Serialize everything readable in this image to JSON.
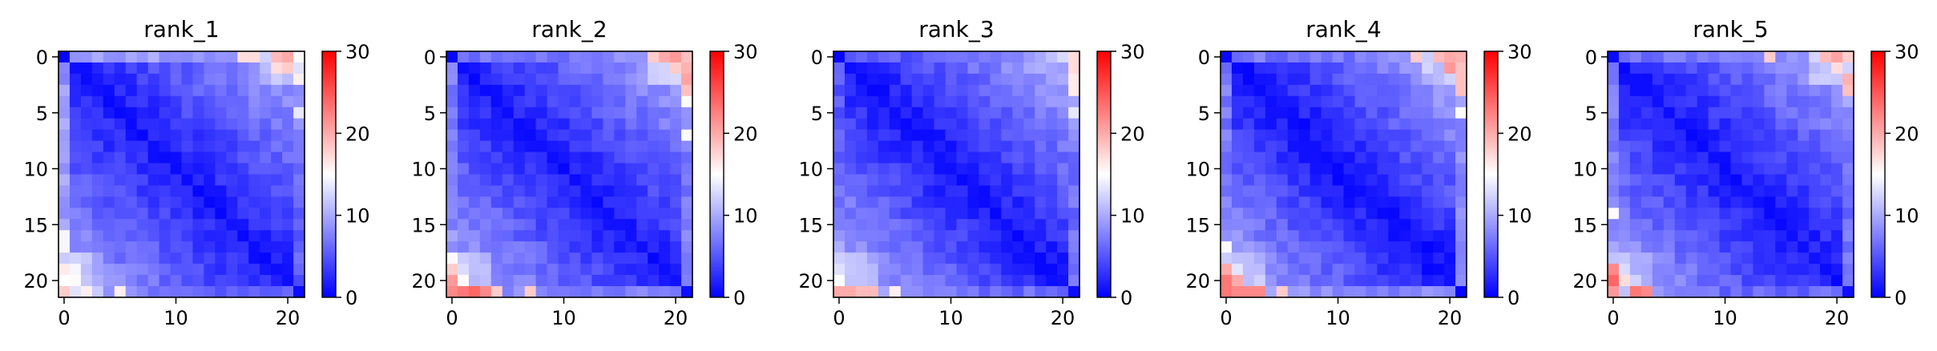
{
  "figure": {
    "colormap": "bwr",
    "colors": {
      "low": "#0000ff",
      "mid": "#ffffff",
      "high": "#ff0000",
      "axis": "#000000"
    }
  },
  "chart_data": [
    {
      "type": "heatmap",
      "title": "rank_1",
      "n": 22,
      "xticks": [
        0,
        10,
        20
      ],
      "yticks": [
        0,
        5,
        10,
        15,
        20
      ],
      "colorbar": {
        "min": 0,
        "max": 30,
        "ticks": [
          0,
          10,
          20,
          30
        ]
      },
      "profile": {
        "diag": 1.5,
        "slope": 0.42,
        "edge_top": 9,
        "edge_bottom": 7,
        "bl_hot": 1,
        "tr_hot": 1
      },
      "hotspots": [
        {
          "row": 0,
          "col": 16,
          "value": 17
        },
        {
          "row": 0,
          "col": 17,
          "value": 17
        },
        {
          "row": 0,
          "col": 19,
          "value": 19
        },
        {
          "row": 0,
          "col": 20,
          "value": 20
        },
        {
          "row": 1,
          "col": 19,
          "value": 17
        },
        {
          "row": 1,
          "col": 20,
          "value": 18
        },
        {
          "row": 2,
          "col": 21,
          "value": 16
        },
        {
          "row": 21,
          "col": 0,
          "value": 18
        },
        {
          "row": 21,
          "col": 2,
          "value": 16
        },
        {
          "row": 21,
          "col": 5,
          "value": 16
        },
        {
          "row": 20,
          "col": 0,
          "value": 15
        }
      ]
    },
    {
      "type": "heatmap",
      "title": "rank_2",
      "n": 22,
      "xticks": [
        0,
        10,
        20
      ],
      "yticks": [
        0,
        5,
        10,
        15,
        20
      ],
      "colorbar": {
        "min": 0,
        "max": 30,
        "ticks": [
          0,
          10,
          20,
          30
        ]
      },
      "profile": {
        "diag": 1.5,
        "slope": 0.44,
        "edge_top": 7,
        "edge_bottom": 9,
        "bl_hot": 1,
        "tr_hot": 1
      },
      "hotspots": [
        {
          "row": 0,
          "col": 18,
          "value": 18
        },
        {
          "row": 0,
          "col": 19,
          "value": 20
        },
        {
          "row": 0,
          "col": 20,
          "value": 21
        },
        {
          "row": 1,
          "col": 20,
          "value": 18
        },
        {
          "row": 21,
          "col": 0,
          "value": 22
        },
        {
          "row": 21,
          "col": 1,
          "value": 23
        },
        {
          "row": 21,
          "col": 2,
          "value": 24
        },
        {
          "row": 21,
          "col": 3,
          "value": 22
        },
        {
          "row": 21,
          "col": 4,
          "value": 18
        },
        {
          "row": 20,
          "col": 0,
          "value": 21
        },
        {
          "row": 19,
          "col": 0,
          "value": 18
        },
        {
          "row": 21,
          "col": 7,
          "value": 18
        }
      ]
    },
    {
      "type": "heatmap",
      "title": "rank_3",
      "n": 22,
      "xticks": [
        0,
        10,
        20
      ],
      "yticks": [
        0,
        5,
        10,
        15,
        20
      ],
      "colorbar": {
        "min": 0,
        "max": 30,
        "ticks": [
          0,
          10,
          20,
          30
        ]
      },
      "profile": {
        "diag": 1.2,
        "slope": 0.47,
        "edge_top": 5,
        "edge_bottom": 8,
        "bl_hot": 1,
        "tr_hot": 0
      },
      "hotspots": [
        {
          "row": 21,
          "col": 0,
          "value": 20
        },
        {
          "row": 21,
          "col": 1,
          "value": 20
        },
        {
          "row": 21,
          "col": 2,
          "value": 19
        },
        {
          "row": 21,
          "col": 3,
          "value": 19
        },
        {
          "row": 20,
          "col": 0,
          "value": 15
        },
        {
          "row": 21,
          "col": 5,
          "value": 16
        }
      ]
    },
    {
      "type": "heatmap",
      "title": "rank_4",
      "n": 22,
      "xticks": [
        0,
        10,
        20
      ],
      "yticks": [
        0,
        5,
        10,
        15,
        20
      ],
      "colorbar": {
        "min": 0,
        "max": 30,
        "ticks": [
          0,
          10,
          20,
          30
        ]
      },
      "profile": {
        "diag": 1.0,
        "slope": 0.48,
        "edge_top": 7,
        "edge_bottom": 10,
        "bl_hot": 1,
        "tr_hot": 1
      },
      "hotspots": [
        {
          "row": 0,
          "col": 17,
          "value": 18
        },
        {
          "row": 0,
          "col": 19,
          "value": 19
        },
        {
          "row": 0,
          "col": 20,
          "value": 20
        },
        {
          "row": 1,
          "col": 20,
          "value": 21
        },
        {
          "row": 21,
          "col": 0,
          "value": 23
        },
        {
          "row": 21,
          "col": 1,
          "value": 22
        },
        {
          "row": 21,
          "col": 2,
          "value": 22
        },
        {
          "row": 21,
          "col": 3,
          "value": 22
        },
        {
          "row": 20,
          "col": 0,
          "value": 23
        },
        {
          "row": 20,
          "col": 1,
          "value": 20
        },
        {
          "row": 19,
          "col": 0,
          "value": 20
        },
        {
          "row": 21,
          "col": 5,
          "value": 18
        }
      ]
    },
    {
      "type": "heatmap",
      "title": "rank_5",
      "n": 22,
      "xticks": [
        0,
        10,
        20
      ],
      "yticks": [
        0,
        5,
        10,
        15,
        20
      ],
      "colorbar": {
        "min": 0,
        "max": 30,
        "ticks": [
          0,
          10,
          20,
          30
        ]
      },
      "profile": {
        "diag": 1.3,
        "slope": 0.44,
        "edge_top": 7,
        "edge_bottom": 8,
        "bl_hot": 1,
        "tr_hot": 1
      },
      "hotspots": [
        {
          "row": 0,
          "col": 14,
          "value": 18
        },
        {
          "row": 0,
          "col": 19,
          "value": 19
        },
        {
          "row": 0,
          "col": 20,
          "value": 18
        },
        {
          "row": 1,
          "col": 20,
          "value": 17
        },
        {
          "row": 21,
          "col": 0,
          "value": 21
        },
        {
          "row": 21,
          "col": 2,
          "value": 23
        },
        {
          "row": 21,
          "col": 3,
          "value": 22
        },
        {
          "row": 20,
          "col": 0,
          "value": 24
        },
        {
          "row": 19,
          "col": 0,
          "value": 22
        },
        {
          "row": 20,
          "col": 1,
          "value": 17
        }
      ]
    }
  ]
}
